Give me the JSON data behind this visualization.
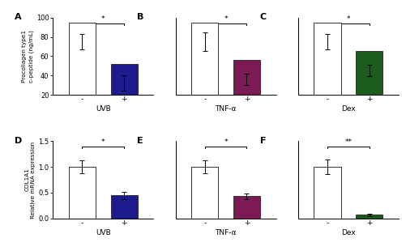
{
  "top_panels": {
    "ylabel": "Procollagen type1\nc-peptide (ng/mL)",
    "ylim": [
      20,
      100
    ],
    "yticks": [
      20,
      40,
      60,
      80,
      100
    ],
    "bars": [
      {
        "label": "A",
        "xlabel": "UVB",
        "values": [
          75,
          32
        ],
        "errors": [
          8,
          8
        ],
        "colors": [
          "white",
          "#1c1c8f"
        ]
      },
      {
        "label": "B",
        "xlabel": "TNF-α",
        "values": [
          75,
          36
        ],
        "errors": [
          10,
          6
        ],
        "colors": [
          "white",
          "#7b1a55"
        ]
      },
      {
        "label": "C",
        "xlabel": "Dex",
        "values": [
          75,
          45
        ],
        "errors": [
          8,
          6
        ],
        "colors": [
          "white",
          "#1a5c1a"
        ]
      }
    ],
    "sig": [
      {
        "star": "*",
        "y": 94
      },
      {
        "star": "*",
        "y": 94
      },
      {
        "star": "*",
        "y": 94
      }
    ]
  },
  "bottom_panels": {
    "ylabel": "COL1A1\nRelative mRNA expression",
    "ylim": [
      0.0,
      1.5
    ],
    "yticks": [
      0.0,
      0.5,
      1.0,
      1.5
    ],
    "bars": [
      {
        "label": "D",
        "xlabel": "UVB",
        "values": [
          1.0,
          0.45
        ],
        "errors": [
          0.12,
          0.07
        ],
        "colors": [
          "white",
          "#1c1c8f"
        ]
      },
      {
        "label": "E",
        "xlabel": "TNF-α",
        "values": [
          1.0,
          0.43
        ],
        "errors": [
          0.13,
          0.05
        ],
        "colors": [
          "white",
          "#7b1a55"
        ]
      },
      {
        "label": "F",
        "xlabel": "Dex",
        "values": [
          1.0,
          0.07
        ],
        "errors": [
          0.14,
          0.02
        ],
        "colors": [
          "white",
          "#1a5c1a"
        ]
      }
    ],
    "sig": [
      {
        "star": "*",
        "y": 1.4
      },
      {
        "star": "*",
        "y": 1.4
      },
      {
        "star": "**",
        "y": 1.4
      }
    ]
  },
  "bar_width": 0.45,
  "bar_gap": 0.7,
  "bg_color": "#ffffff",
  "edgecolor": "#333333",
  "linewidth": 0.7
}
